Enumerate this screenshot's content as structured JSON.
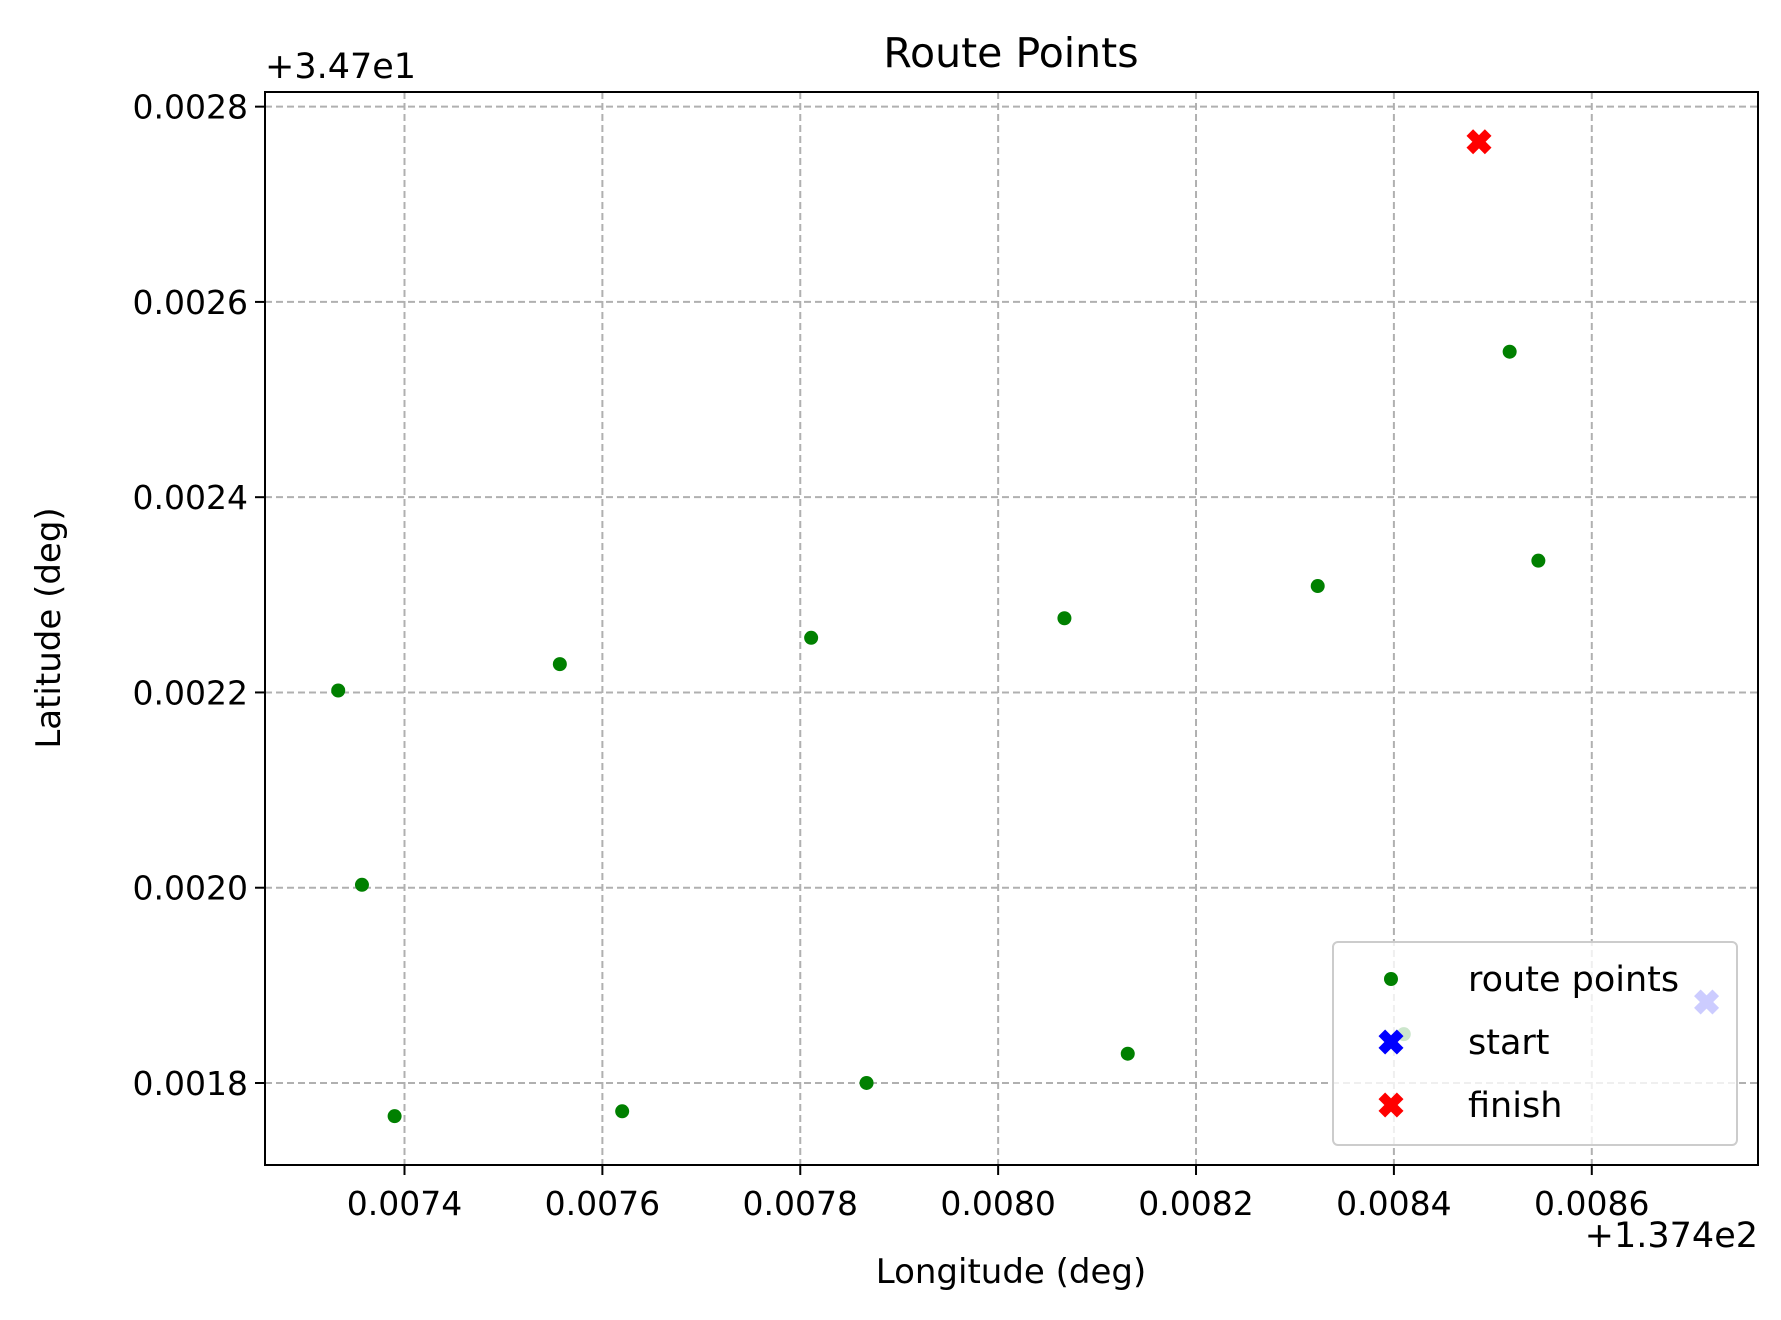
{
  "chart_data": {
    "type": "scatter",
    "title": "Route Points",
    "xlabel": "Longitude (deg)",
    "ylabel": "Latitude (deg)",
    "x_offset_text": "+1.374e2",
    "y_offset_text": "+3.47e1",
    "xlim": [
      0.007259,
      0.008768
    ],
    "ylim": [
      0.001716,
      0.002815
    ],
    "x_ticks": [
      {
        "value": 0.0074,
        "label": "0.0074"
      },
      {
        "value": 0.0076,
        "label": "0.0076"
      },
      {
        "value": 0.0078,
        "label": "0.0078"
      },
      {
        "value": 0.008,
        "label": "0.0080"
      },
      {
        "value": 0.0082,
        "label": "0.0082"
      },
      {
        "value": 0.0084,
        "label": "0.0084"
      },
      {
        "value": 0.0086,
        "label": "0.0086"
      }
    ],
    "y_ticks": [
      {
        "value": 0.0018,
        "label": "0.0018"
      },
      {
        "value": 0.002,
        "label": "0.0020"
      },
      {
        "value": 0.0022,
        "label": "0.0022"
      },
      {
        "value": 0.0024,
        "label": "0.0024"
      },
      {
        "value": 0.0026,
        "label": "0.0026"
      },
      {
        "value": 0.0028,
        "label": "0.0028"
      }
    ],
    "grid": true,
    "legend_position": "lower right",
    "series": [
      {
        "name": "route points",
        "marker": "circle",
        "color": "#008000",
        "points": [
          {
            "x": 0.007333,
            "y": 0.002202
          },
          {
            "x": 0.007357,
            "y": 0.002003
          },
          {
            "x": 0.00739,
            "y": 0.001766
          },
          {
            "x": 0.007557,
            "y": 0.002229
          },
          {
            "x": 0.00762,
            "y": 0.001771
          },
          {
            "x": 0.007811,
            "y": 0.002256
          },
          {
            "x": 0.007867,
            "y": 0.0018
          },
          {
            "x": 0.008067,
            "y": 0.002276
          },
          {
            "x": 0.008131,
            "y": 0.00183
          },
          {
            "x": 0.008323,
            "y": 0.002309
          },
          {
            "x": 0.00841,
            "y": 0.00185
          },
          {
            "x": 0.008517,
            "y": 0.002549
          },
          {
            "x": 0.008546,
            "y": 0.002335
          }
        ]
      },
      {
        "name": "start",
        "marker": "x-filled",
        "color": "#0000ff",
        "points": [
          {
            "x": 0.008716,
            "y": 0.001883
          }
        ]
      },
      {
        "name": "finish",
        "marker": "x-filled",
        "color": "#ff0000",
        "points": [
          {
            "x": 0.008486,
            "y": 0.002764
          }
        ]
      }
    ]
  }
}
